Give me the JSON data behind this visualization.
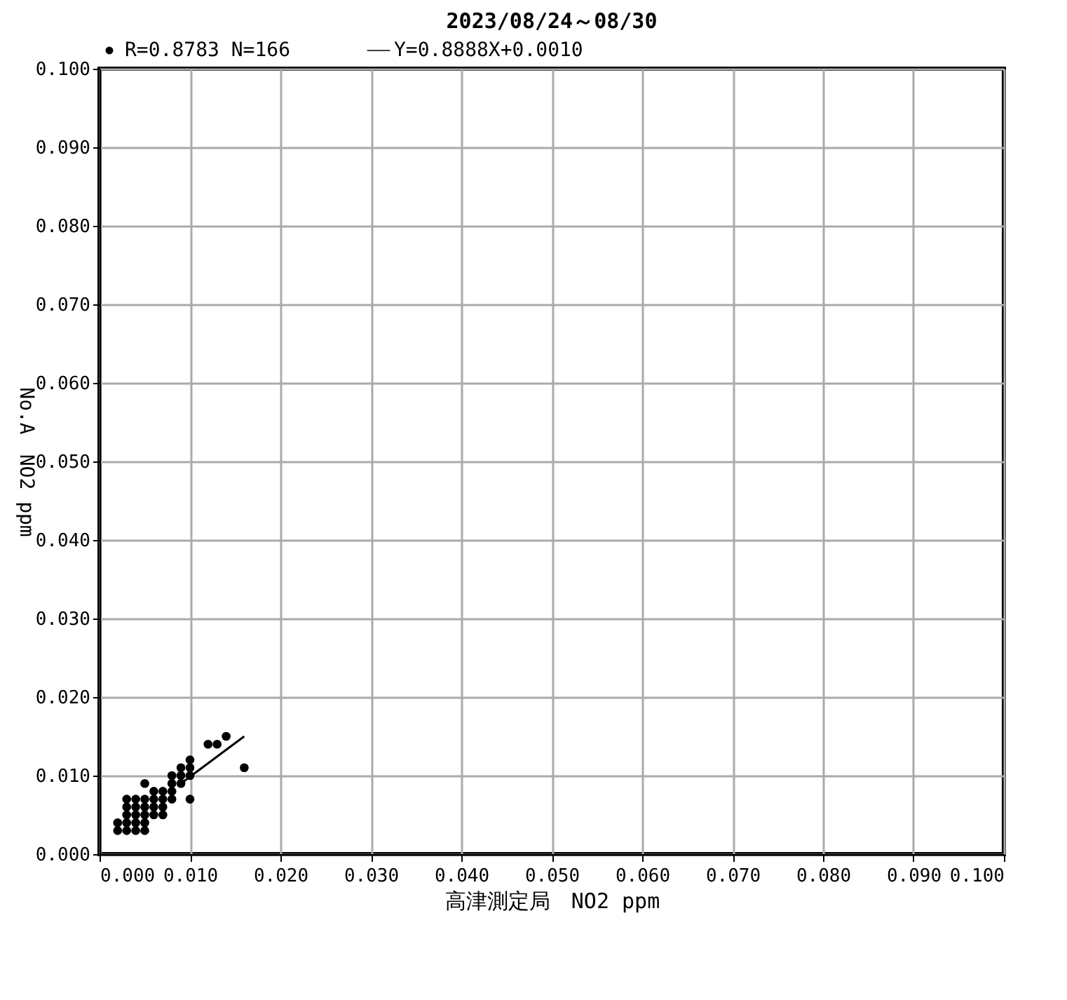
{
  "chart_data": {
    "type": "scatter",
    "title": "2023/08/24～08/30",
    "xlabel": "高津測定局　NO2 ppm",
    "ylabel": "No.A　NO2 ppm",
    "xlim": [
      0,
      0.1
    ],
    "ylim": [
      0,
      0.1
    ],
    "xticks": [
      {
        "value": 0,
        "label": "0.000"
      },
      {
        "value": 0.01,
        "label": "0.010"
      },
      {
        "value": 0.02,
        "label": "0.020"
      },
      {
        "value": 0.03,
        "label": "0.030"
      },
      {
        "value": 0.04,
        "label": "0.040"
      },
      {
        "value": 0.05,
        "label": "0.050"
      },
      {
        "value": 0.06,
        "label": "0.060"
      },
      {
        "value": 0.07,
        "label": "0.070"
      },
      {
        "value": 0.08,
        "label": "0.080"
      },
      {
        "value": 0.09,
        "label": "0.090"
      },
      {
        "value": 0.1,
        "label": "0.100"
      }
    ],
    "yticks": [
      {
        "value": 0,
        "label": "0.000"
      },
      {
        "value": 0.01,
        "label": "0.010"
      },
      {
        "value": 0.02,
        "label": "0.020"
      },
      {
        "value": 0.03,
        "label": "0.030"
      },
      {
        "value": 0.04,
        "label": "0.040"
      },
      {
        "value": 0.05,
        "label": "0.050"
      },
      {
        "value": 0.06,
        "label": "0.060"
      },
      {
        "value": 0.07,
        "label": "0.070"
      },
      {
        "value": 0.08,
        "label": "0.080"
      },
      {
        "value": 0.09,
        "label": "0.090"
      },
      {
        "value": 0.1,
        "label": "0.100"
      }
    ],
    "grid": true,
    "legend": "top",
    "series": [
      {
        "name": "R=0.8783 N=166",
        "type": "scatter",
        "marker": "circle",
        "color": "#000000",
        "x": [
          0.002,
          0.003,
          0.004,
          0.005,
          0.002,
          0.003,
          0.004,
          0.005,
          0.003,
          0.004,
          0.005,
          0.006,
          0.007,
          0.003,
          0.004,
          0.005,
          0.006,
          0.007,
          0.003,
          0.004,
          0.005,
          0.006,
          0.007,
          0.008,
          0.01,
          0.006,
          0.007,
          0.008,
          0.005,
          0.008,
          0.009,
          0.008,
          0.009,
          0.01,
          0.009,
          0.01,
          0.016,
          0.01,
          0.012,
          0.013,
          0.014
        ],
        "values": [
          0.003,
          0.003,
          0.003,
          0.003,
          0.004,
          0.004,
          0.004,
          0.004,
          0.005,
          0.005,
          0.005,
          0.005,
          0.005,
          0.006,
          0.006,
          0.006,
          0.006,
          0.006,
          0.007,
          0.007,
          0.007,
          0.007,
          0.007,
          0.007,
          0.007,
          0.008,
          0.008,
          0.008,
          0.009,
          0.009,
          0.009,
          0.01,
          0.01,
          0.01,
          0.011,
          0.011,
          0.011,
          0.012,
          0.014,
          0.014,
          0.015
        ]
      },
      {
        "name": "Y=0.8888X+0.0010",
        "type": "line",
        "marker": "none",
        "color": "#000000",
        "line_style": "solid",
        "x": [
          0.009,
          0.016
        ],
        "values": [
          0.009,
          0.015
        ]
      }
    ]
  }
}
